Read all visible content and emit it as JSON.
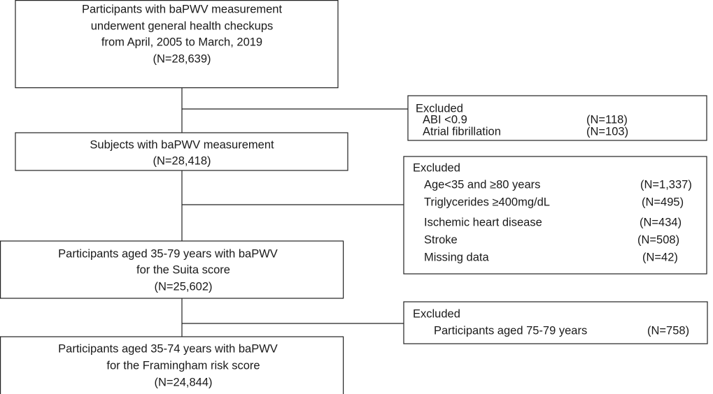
{
  "nodes": [
    {
      "lines": [
        "Participants with baPWV measurement",
        "underwent general health checkups",
        "from April, 2005 to March, 2019",
        "(N=28,639)"
      ]
    },
    {
      "lines": [
        "Subjects with baPWV measurement",
        "(N=28,418)"
      ]
    },
    {
      "lines": [
        "Participants aged 35-79 years with baPWV",
        "for the Suita score",
        "(N=25,602)"
      ]
    },
    {
      "lines": [
        "Participants aged 35-74 years with baPWV",
        "for the Framingham risk score",
        "(N=24,844)"
      ]
    }
  ],
  "exclusions": [
    {
      "title": "Excluded",
      "items": [
        {
          "reason": "ABI <0.9",
          "count": "(N=118)"
        },
        {
          "reason": "Atrial fibrillation",
          "count": "(N=103)"
        }
      ]
    },
    {
      "title": "Excluded",
      "items": [
        {
          "reason": "Age<35 and ≥80 years",
          "count": "(N=1,337)"
        },
        {
          "reason": "Triglycerides ≥400mg/dL",
          "count": "(N=495)"
        },
        {
          "reason": "Ischemic heart disease",
          "count": "(N=434)"
        },
        {
          "reason": "Stroke",
          "count": "(N=508)"
        },
        {
          "reason": "Missing data",
          "count": "(N=42)"
        }
      ]
    },
    {
      "title": "Excluded",
      "items": [
        {
          "reason": "Participants aged 75-79 years",
          "count": "(N=758)"
        }
      ]
    }
  ]
}
